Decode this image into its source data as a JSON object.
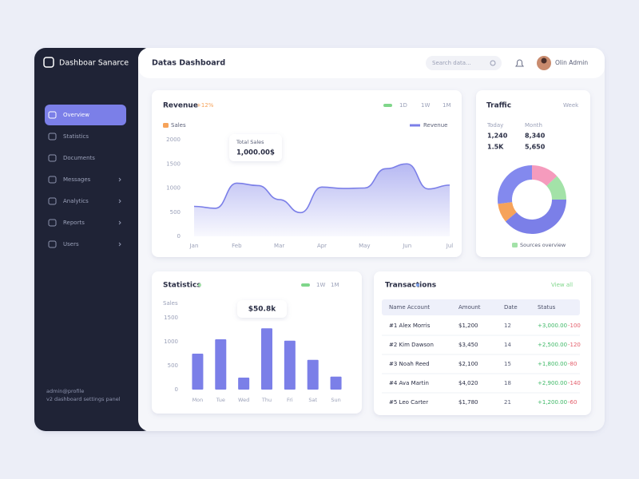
{
  "sidebar": {
    "brand": "Dashboar Sanarce",
    "nav": [
      "Overview",
      "Statistics",
      "Documents",
      "Messages",
      "Analytics",
      "Reports",
      "Users"
    ],
    "footer": [
      "admin@profile",
      "v2 dashboard settings panel"
    ]
  },
  "header": {
    "title": "Datas Dashboard",
    "search": "Search data...",
    "user": "Olin Admin"
  },
  "chart_data": [
    {
      "type": "area",
      "title": "Revenue",
      "badge": "+12%",
      "tabs": [
        "1D",
        "1W",
        "1M"
      ],
      "subtitle": "Sales",
      "categories": [
        "Jan",
        null,
        "Feb",
        null,
        "Mar",
        null,
        "Apr",
        null,
        "May",
        null,
        "Jun",
        null,
        "Jul"
      ],
      "series": [
        {
          "name": "Revenue",
          "color": "#7b7fe8",
          "values": [
            620,
            580,
            1100,
            1050,
            760,
            490,
            1020,
            990,
            1000,
            1400,
            1500,
            980,
            1060
          ]
        }
      ],
      "ylim": [
        0,
        2000
      ],
      "yticks": [
        0,
        500,
        1000,
        1500,
        2000
      ],
      "grid": false,
      "tooltip": {
        "label": "Total Sales",
        "value": "1,000.00$"
      }
    },
    {
      "type": "donut",
      "title": "Traffic",
      "period": "Week",
      "stats": [
        {
          "label": "Today",
          "values": [
            "1,240",
            "1.5K"
          ]
        },
        {
          "label": "Month",
          "values": [
            "8,340",
            "5,650"
          ]
        }
      ],
      "values": [
        13,
        12,
        39,
        9,
        27
      ],
      "colors": [
        "#f59bbd",
        "#a3e2a8",
        "#7b7fe8",
        "#f6a35a",
        "#8389ee"
      ],
      "caption": "Sources overview"
    },
    {
      "type": "bar",
      "title": "Statistics",
      "tabs": [
        "1W",
        "1M"
      ],
      "subtitle": "Sales",
      "categories": [
        "Mon",
        "Tue",
        "Wed",
        "Thu",
        "Fri",
        "Sat",
        "Sun"
      ],
      "values": [
        750,
        1050,
        250,
        1280,
        1020,
        620,
        270
      ],
      "color": "#7b7fe8",
      "ylim": [
        0,
        1500
      ],
      "yticks": [
        0,
        500,
        1000,
        1500
      ],
      "grid": false,
      "tooltip": "$50.8k"
    }
  ],
  "table": {
    "title": "Transactions",
    "link": "View all",
    "columns": [
      "Name Account",
      "Amount",
      "Date",
      "Status"
    ],
    "rows": [
      {
        "name": "#1 Alex Morris",
        "amount": "$1,200",
        "date": "12",
        "gain": "+3,000.00",
        "loss": "-100"
      },
      {
        "name": "#2 Kim Dawson",
        "amount": "$3,450",
        "date": "14",
        "gain": "+2,500.00",
        "loss": "-120"
      },
      {
        "name": "#3 Noah Reed",
        "amount": "$2,100",
        "date": "15",
        "gain": "+1,800.00",
        "loss": "-80"
      },
      {
        "name": "#4 Ava Martin",
        "amount": "$4,020",
        "date": "18",
        "gain": "+2,900.00",
        "loss": "-140"
      },
      {
        "name": "#5 Leo Carter",
        "amount": "$1,780",
        "date": "21",
        "gain": "+1,200.00",
        "loss": "-60"
      }
    ]
  }
}
